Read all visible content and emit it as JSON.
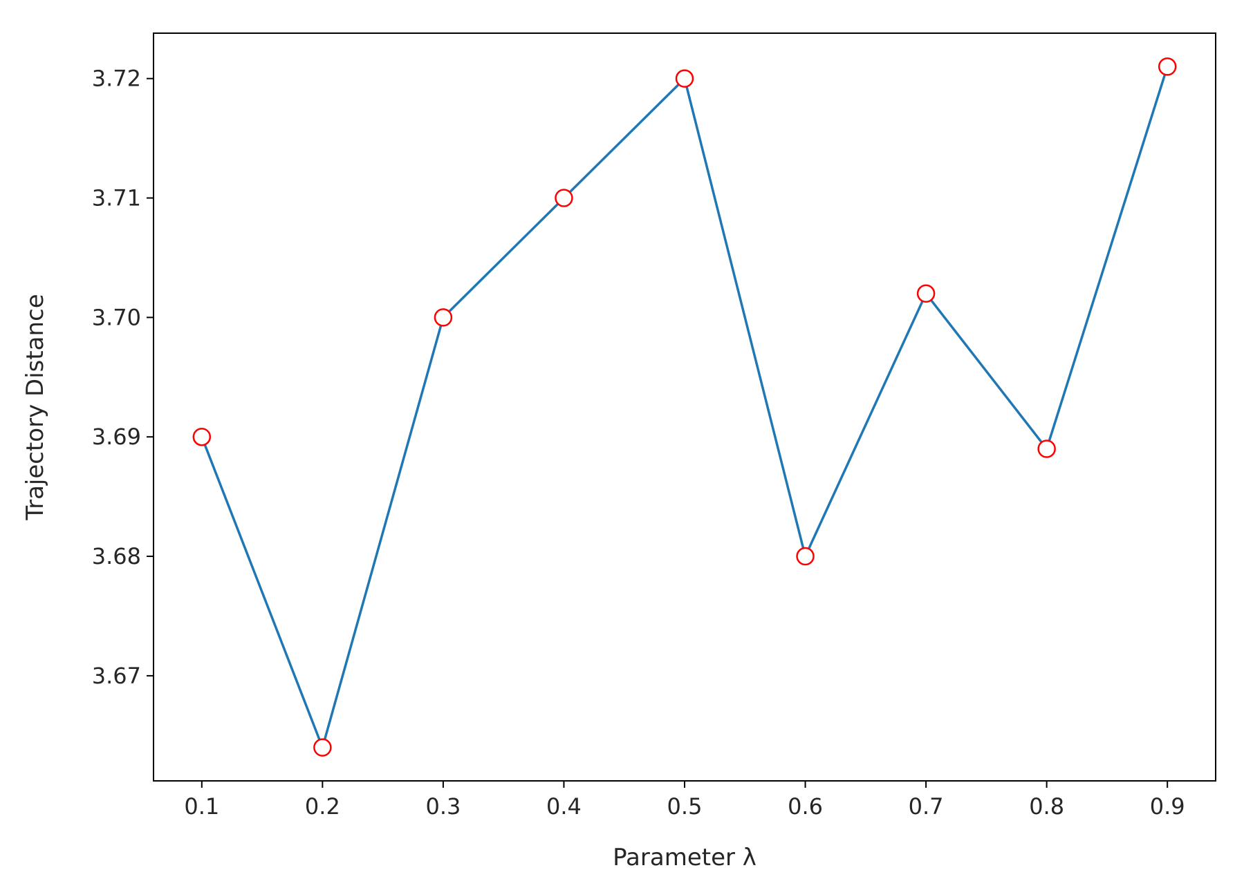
{
  "chart_data": {
    "type": "line",
    "title": "",
    "xlabel": "Parameter λ",
    "ylabel": "Trajectory Distance",
    "x": [
      0.1,
      0.2,
      0.3,
      0.4,
      0.5,
      0.6,
      0.7,
      0.8,
      0.9
    ],
    "series": [
      {
        "values": [
          3.69,
          3.664,
          3.7,
          3.71,
          3.72,
          3.68,
          3.702,
          3.689,
          3.721
        ],
        "line_color": "#1f77b4",
        "marker": "circle",
        "marker_face_color": "#ffffff",
        "marker_edge_color": "#ff0000"
      }
    ],
    "xlim": [
      0.06,
      0.94
    ],
    "ylim": [
      3.6612,
      3.7238
    ],
    "xticks": [
      0.1,
      0.2,
      0.3,
      0.4,
      0.5,
      0.6,
      0.7,
      0.8,
      0.9
    ],
    "xtick_labels": [
      "0.1",
      "0.2",
      "0.3",
      "0.4",
      "0.5",
      "0.6",
      "0.7",
      "0.8",
      "0.9"
    ],
    "yticks": [
      3.67,
      3.68,
      3.69,
      3.7,
      3.71,
      3.72
    ],
    "ytick_labels": [
      "3.67",
      "3.68",
      "3.69",
      "3.70",
      "3.71",
      "3.72"
    ],
    "grid": false,
    "legend": "none"
  }
}
